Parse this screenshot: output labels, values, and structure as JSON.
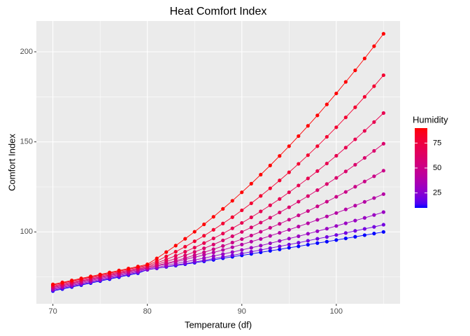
{
  "chart_data": {
    "type": "line",
    "title": "Heat Comfort Index",
    "x_label": "Temperature (df)",
    "y_label": "Comfort Index",
    "x": [
      70,
      71,
      72,
      73,
      74,
      75,
      76,
      77,
      78,
      79,
      80,
      81,
      82,
      83,
      84,
      85,
      86,
      87,
      88,
      89,
      90,
      91,
      92,
      93,
      94,
      95,
      96,
      97,
      98,
      99,
      100,
      101,
      102,
      103,
      104,
      105
    ],
    "xlim": [
      68.25,
      106.75
    ],
    "xticks": [
      70,
      80,
      90,
      100
    ],
    "x_minor_ticks": [
      75,
      85,
      95,
      105
    ],
    "ylim": [
      60.1,
      217.1
    ],
    "yticks": [
      100,
      150,
      200
    ],
    "y_minor_ticks": [
      75,
      125,
      175
    ],
    "grid": true,
    "colorbar": {
      "title": "Humidity",
      "lim": [
        10,
        90
      ],
      "ticks": [
        25,
        50,
        75
      ],
      "low": "#0000FF",
      "high": "#FF0000"
    },
    "series": [
      {
        "humidity": 10,
        "values": [
          67.2,
          68.3,
          69.4,
          70.5,
          71.6,
          72.7,
          73.8,
          74.9,
          76.0,
          77.1,
          79.0,
          79.8,
          80.6,
          81.3,
          82.1,
          82.9,
          83.7,
          84.5,
          85.4,
          86.2,
          87.0,
          87.8,
          88.7,
          89.5,
          90.3,
          91.2,
          92.0,
          92.9,
          93.8,
          94.6,
          95.5,
          96.4,
          97.3,
          98.2,
          99.1,
          100.0
        ]
      },
      {
        "humidity": 20,
        "values": [
          67.6,
          68.7,
          69.8,
          70.9,
          72.0,
          73.1,
          74.2,
          75.3,
          76.4,
          77.5,
          79.0,
          79.8,
          80.7,
          81.6,
          82.4,
          83.3,
          84.2,
          85.2,
          86.1,
          87.0,
          88.0,
          89.0,
          90.0,
          91.0,
          92.0,
          93.0,
          94.0,
          95.1,
          96.2,
          97.2,
          98.3,
          99.4,
          100.6,
          101.7,
          102.8,
          104.0
        ]
      },
      {
        "humidity": 30,
        "values": [
          68.1,
          69.2,
          70.3,
          71.4,
          72.5,
          73.6,
          74.7,
          75.8,
          76.9,
          78.0,
          79.5,
          80.4,
          81.4,
          82.4,
          83.4,
          84.4,
          85.5,
          86.6,
          87.7,
          88.8,
          90.0,
          91.2,
          92.4,
          93.7,
          95.0,
          96.3,
          97.6,
          99.0,
          100.4,
          101.8,
          103.3,
          104.8,
          106.3,
          107.8,
          109.4,
          111.0
        ]
      },
      {
        "humidity": 40,
        "values": [
          68.6,
          69.7,
          70.8,
          71.9,
          73.0,
          74.1,
          75.2,
          76.3,
          77.4,
          78.5,
          80.0,
          81.1,
          82.2,
          83.4,
          84.7,
          85.9,
          87.3,
          88.6,
          90.0,
          91.5,
          93.0,
          94.6,
          96.1,
          97.8,
          99.5,
          101.2,
          103.0,
          104.8,
          106.7,
          108.6,
          110.5,
          112.5,
          114.6,
          116.7,
          118.8,
          121.0
        ]
      },
      {
        "humidity": 50,
        "values": [
          69.1,
          70.2,
          71.3,
          72.4,
          73.5,
          74.6,
          75.7,
          76.8,
          77.9,
          79.0,
          80.0,
          81.3,
          82.6,
          84.0,
          85.5,
          87.1,
          88.7,
          90.4,
          92.2,
          94.1,
          96.0,
          98.0,
          100.1,
          102.3,
          104.5,
          106.8,
          109.2,
          111.6,
          114.2,
          116.8,
          119.5,
          122.2,
          125.1,
          128.0,
          130.9,
          134.0
        ]
      },
      {
        "humidity": 60,
        "values": [
          69.5,
          70.6,
          71.7,
          72.8,
          73.9,
          75.0,
          76.1,
          77.2,
          78.3,
          79.4,
          80.5,
          82.0,
          83.6,
          85.2,
          87.0,
          88.9,
          90.9,
          93.0,
          95.3,
          97.6,
          100.0,
          102.5,
          105.2,
          107.9,
          110.8,
          113.7,
          116.8,
          119.9,
          123.2,
          126.6,
          130.0,
          133.6,
          137.3,
          141.1,
          145.0,
          149.0
        ]
      },
      {
        "humidity": 70,
        "values": [
          70.0,
          71.1,
          72.2,
          73.3,
          74.4,
          75.5,
          76.6,
          77.7,
          78.8,
          79.9,
          81.0,
          82.8,
          84.7,
          86.8,
          89.0,
          91.3,
          93.8,
          96.4,
          99.1,
          102.0,
          105.0,
          108.1,
          111.4,
          114.8,
          118.3,
          122.0,
          125.8,
          129.7,
          133.8,
          138.0,
          142.3,
          146.8,
          151.4,
          156.1,
          161.0,
          166.0
        ]
      },
      {
        "humidity": 80,
        "values": [
          70.5,
          71.6,
          72.7,
          73.8,
          74.9,
          76.0,
          77.1,
          78.2,
          79.3,
          80.4,
          81.5,
          83.8,
          86.4,
          89.0,
          91.8,
          94.8,
          97.9,
          101.2,
          104.7,
          108.2,
          112.0,
          115.9,
          120.0,
          124.2,
          128.6,
          133.1,
          137.8,
          142.6,
          147.6,
          152.8,
          158.1,
          163.6,
          169.2,
          175.0,
          180.9,
          187.0
        ]
      },
      {
        "humidity": 90,
        "values": [
          70.9,
          72.0,
          73.1,
          74.2,
          75.3,
          76.4,
          77.5,
          78.6,
          79.7,
          80.8,
          82.0,
          85.3,
          88.8,
          92.4,
          96.2,
          100.1,
          104.2,
          108.4,
          112.8,
          117.3,
          122.0,
          126.8,
          131.8,
          136.9,
          142.2,
          147.6,
          153.2,
          158.9,
          164.7,
          170.8,
          176.9,
          183.3,
          189.7,
          196.3,
          203.1,
          210.0
        ]
      }
    ]
  }
}
